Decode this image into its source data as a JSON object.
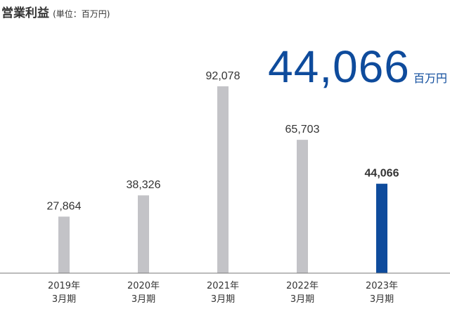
{
  "header": {
    "title": "営業利益",
    "unit": "(単位：百万円)"
  },
  "highlight": {
    "value": "44,066",
    "unit": "百万円"
  },
  "colors": {
    "bar_default": "#c3c3c7",
    "bar_highlight": "#0e4b9c",
    "axis": "#777777",
    "highlight_text": "#0e4b9c"
  },
  "chart_data": {
    "type": "bar",
    "title": "営業利益",
    "unit": "百万円",
    "categories": [
      [
        "2019年",
        "3月期"
      ],
      [
        "2020年",
        "3月期"
      ],
      [
        "2021年",
        "3月期"
      ],
      [
        "2022年",
        "3月期"
      ],
      [
        "2023年",
        "3月期"
      ]
    ],
    "values": [
      27864,
      38326,
      92078,
      65703,
      44066
    ],
    "data_labels": [
      "27,864",
      "38,326",
      "92,078",
      "65,703",
      "44,066"
    ],
    "highlight_index": 4,
    "ylim": [
      0,
      100000
    ],
    "grid": false,
    "legend": "none"
  }
}
